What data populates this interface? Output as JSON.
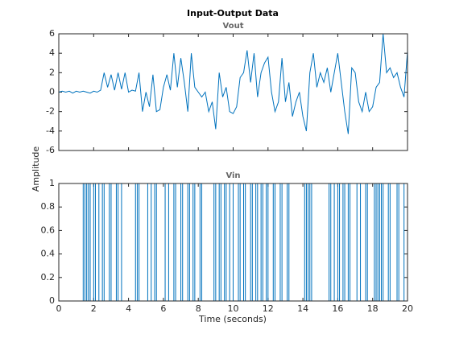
{
  "title": "Input-Output Data",
  "ylabel": "Amplitude",
  "xlabel": "Time (seconds)",
  "chart_data": [
    {
      "type": "line",
      "title": "Vout",
      "color": "#0072bd",
      "x": [
        0,
        0.2,
        0.4,
        0.6,
        0.8,
        1,
        1.2,
        1.4,
        1.6,
        1.8,
        2,
        2.2,
        2.4,
        2.6,
        2.8,
        3,
        3.2,
        3.4,
        3.6,
        3.8,
        4,
        4.2,
        4.4,
        4.6,
        4.8,
        5,
        5.2,
        5.4,
        5.6,
        5.8,
        6,
        6.2,
        6.4,
        6.6,
        6.8,
        7,
        7.2,
        7.4,
        7.6,
        7.8,
        8,
        8.2,
        8.4,
        8.6,
        8.8,
        9,
        9.2,
        9.4,
        9.6,
        9.8,
        10,
        10.2,
        10.4,
        10.6,
        10.8,
        11,
        11.2,
        11.4,
        11.6,
        11.8,
        12,
        12.2,
        12.4,
        12.6,
        12.8,
        13,
        13.2,
        13.4,
        13.6,
        13.8,
        14,
        14.2,
        14.4,
        14.6,
        14.8,
        15,
        15.2,
        15.4,
        15.6,
        15.8,
        16,
        16.2,
        16.4,
        16.6,
        16.8,
        17,
        17.2,
        17.4,
        17.6,
        17.8,
        18,
        18.2,
        18.4,
        18.6,
        18.8,
        19,
        19.2,
        19.4,
        19.6,
        19.8,
        20
      ],
      "values": [
        0,
        0.1,
        0,
        0.1,
        -0.1,
        0.1,
        0,
        0.1,
        0,
        -0.1,
        0.1,
        0,
        0.2,
        2,
        0.5,
        1.8,
        0.2,
        2,
        0.3,
        2,
        0,
        0.2,
        0.1,
        2,
        -2,
        0,
        -1.5,
        1.8,
        -2,
        -1.8,
        0.5,
        1.8,
        0.2,
        4,
        0.5,
        3.5,
        1,
        -2,
        4,
        0.5,
        0,
        -0.5,
        0,
        -2,
        -1,
        -3.8,
        2,
        -0.5,
        0.5,
        -2,
        -2.2,
        -1.5,
        1.5,
        2,
        4.3,
        1,
        4,
        -0.5,
        2,
        3,
        3.6,
        0,
        -2,
        -1,
        3.5,
        -1,
        1,
        -2.5,
        -1,
        0,
        -2.5,
        -4,
        2,
        4,
        0.5,
        2,
        1,
        2.5,
        0,
        2,
        4,
        1,
        -2,
        -4.3,
        2.5,
        2,
        -1,
        -2,
        0,
        -2,
        -1.5,
        0.5,
        1,
        6,
        2,
        2.5,
        1.5,
        2,
        0.5,
        -0.5,
        4.2
      ],
      "xlim": [
        0,
        20
      ],
      "ylim": [
        -6,
        6
      ],
      "yticks": [
        -6,
        -4,
        -2,
        0,
        2,
        4,
        6
      ]
    },
    {
      "type": "stairs",
      "title": "Vin",
      "color": "#0072bd",
      "x": [
        0,
        1.4,
        1.5,
        1.6,
        1.7,
        1.8,
        2.0,
        2.1,
        2.3,
        2.5,
        2.6,
        2.9,
        3.0,
        3.3,
        3.4,
        3.6,
        4.4,
        4.5,
        4.6,
        5.1,
        5.3,
        5.5,
        5.6,
        6.1,
        6.3,
        6.6,
        6.7,
        7.0,
        7.1,
        7.4,
        7.5,
        7.7,
        7.8,
        8.1,
        8.2,
        8.9,
        9.0,
        9.2,
        9.3,
        9.5,
        9.6,
        9.8,
        10.0,
        10.3,
        10.4,
        10.6,
        10.7,
        11.0,
        11.1,
        11.3,
        11.4,
        11.6,
        11.7,
        11.9,
        12.0,
        12.3,
        12.4,
        12.7,
        12.8,
        13.1,
        13.2,
        14.1,
        14.2,
        14.3,
        14.4,
        14.5,
        15.5,
        15.6,
        15.8,
        16.0,
        16.1,
        16.3,
        16.4,
        16.6,
        16.7,
        17.1,
        17.3,
        17.6,
        17.7,
        18.1,
        18.2,
        18.3,
        18.4,
        18.5,
        18.6,
        18.9,
        19.0,
        19.4,
        19.5,
        19.8,
        20
      ],
      "values": [
        0,
        1,
        0,
        1,
        0,
        1,
        0,
        1,
        0,
        1,
        0,
        1,
        0,
        1,
        0,
        1,
        0,
        1,
        0,
        1,
        0,
        1,
        0,
        1,
        0,
        1,
        0,
        1,
        0,
        1,
        0,
        1,
        0,
        1,
        0,
        1,
        0,
        1,
        0,
        1,
        0,
        1,
        0,
        1,
        0,
        1,
        0,
        1,
        0,
        1,
        0,
        1,
        0,
        1,
        0,
        1,
        0,
        1,
        0,
        1,
        0,
        1,
        0,
        1,
        0,
        1,
        0,
        1,
        0,
        1,
        0,
        1,
        0,
        1,
        0,
        1,
        0,
        1,
        0,
        1,
        0,
        1,
        0,
        1,
        0,
        1,
        0,
        1,
        0,
        1,
        0
      ],
      "xlim": [
        0,
        20
      ],
      "ylim": [
        0,
        1
      ],
      "yticks": [
        0,
        0.2,
        0.4,
        0.6,
        0.8,
        1
      ],
      "xticks": [
        0,
        2,
        4,
        6,
        8,
        10,
        12,
        14,
        16,
        18,
        20
      ]
    }
  ]
}
